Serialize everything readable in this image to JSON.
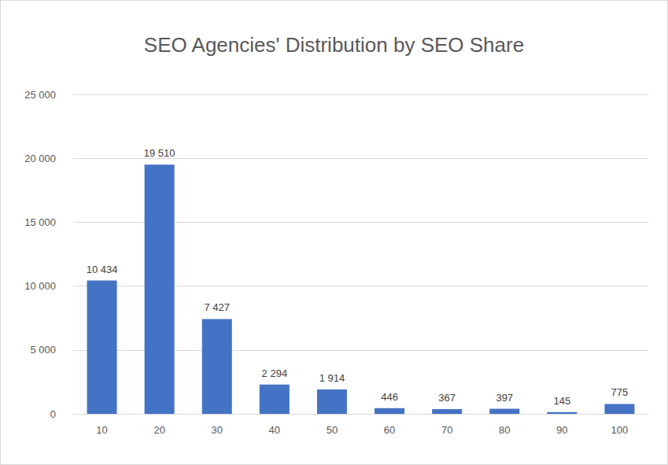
{
  "chart_data": {
    "type": "bar",
    "title": "SEO Agencies' Distribution by SEO Share",
    "categories": [
      "10",
      "20",
      "30",
      "40",
      "50",
      "60",
      "70",
      "80",
      "90",
      "100"
    ],
    "values": [
      10434,
      19510,
      7427,
      2294,
      1914,
      446,
      367,
      397,
      145,
      775
    ],
    "value_labels": [
      "10 434",
      "19 510",
      "7 427",
      "2 294",
      "1 914",
      "446",
      "367",
      "397",
      "145",
      "775"
    ],
    "color": "#4472c4",
    "ylim": [
      0,
      25000
    ],
    "yticks": [
      0,
      {
        "value": 5000,
        "label": "5 000"
      },
      {
        "value": 10000,
        "label": "10 000"
      },
      {
        "value": 15000,
        "label": "15 000"
      },
      {
        "value": 20000,
        "label": "20 000"
      },
      {
        "value": 25000,
        "label": "25 000"
      }
    ],
    "grid": true,
    "data_labels": true
  }
}
